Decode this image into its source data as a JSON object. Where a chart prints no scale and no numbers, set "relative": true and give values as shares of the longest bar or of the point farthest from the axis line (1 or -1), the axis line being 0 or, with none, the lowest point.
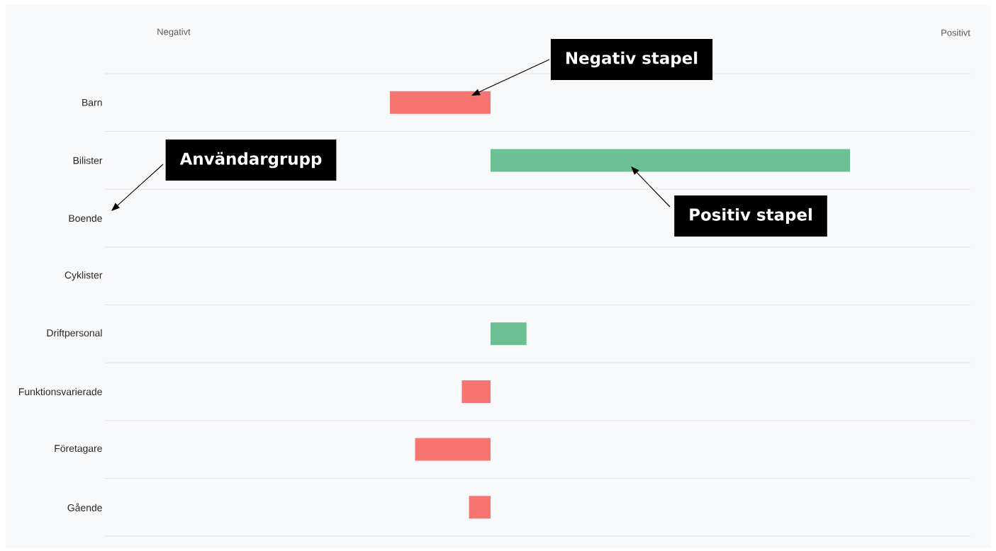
{
  "chart_data": {
    "type": "bar",
    "orientation": "horizontal",
    "relative": true,
    "categories": [
      "Barn",
      "Bilister",
      "Boende",
      "Cyklister",
      "Driftpersonal",
      "Funktionsvarierade",
      "Företagare",
      "Gående"
    ],
    "values": [
      -0.28,
      1,
      null,
      null,
      0.1,
      -0.08,
      -0.21,
      -0.06
    ],
    "colors": [
      "#f67570",
      "#6dbf94",
      null,
      null,
      "#6dbf94",
      "#f67570",
      "#f67570",
      "#f67570"
    ],
    "grid": "y",
    "tick_labels": "y",
    "annotations": [
      "Negativt",
      "Positivt",
      "Negativ stapel",
      "Användargrupp",
      "Positiv stapel"
    ]
  }
}
